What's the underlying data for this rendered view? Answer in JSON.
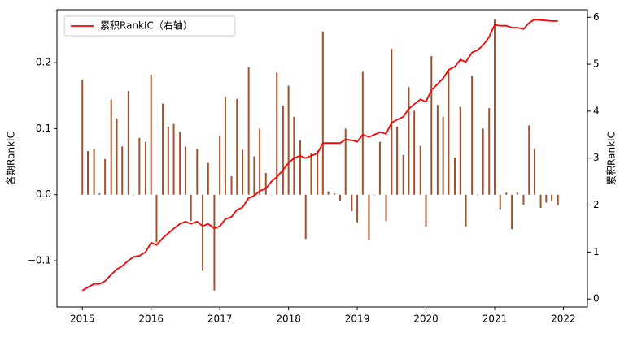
{
  "chart_data": {
    "type": "combo",
    "ylabel": "各期RankIC",
    "y2label": "累积RankIC",
    "x": [
      2015.0,
      2015.08,
      2015.17,
      2015.25,
      2015.33,
      2015.42,
      2015.5,
      2015.58,
      2015.67,
      2015.75,
      2015.83,
      2015.92,
      2016.0,
      2016.08,
      2016.17,
      2016.25,
      2016.33,
      2016.42,
      2016.5,
      2016.58,
      2016.67,
      2016.75,
      2016.83,
      2016.92,
      2017.0,
      2017.08,
      2017.17,
      2017.25,
      2017.33,
      2017.42,
      2017.5,
      2017.58,
      2017.67,
      2017.75,
      2017.83,
      2017.92,
      2018.0,
      2018.08,
      2018.17,
      2018.25,
      2018.33,
      2018.42,
      2018.5,
      2018.58,
      2018.67,
      2018.75,
      2018.83,
      2018.92,
      2019.0,
      2019.08,
      2019.17,
      2019.25,
      2019.33,
      2019.42,
      2019.5,
      2019.58,
      2019.67,
      2019.75,
      2019.83,
      2019.92,
      2020.0,
      2020.08,
      2020.17,
      2020.25,
      2020.33,
      2020.42,
      2020.5,
      2020.58,
      2020.67,
      2020.75,
      2020.83,
      2020.92,
      2021.0,
      2021.08,
      2021.17,
      2021.25,
      2021.33,
      2021.42,
      2021.5,
      2021.58,
      2021.67,
      2021.75,
      2021.83,
      2021.92
    ],
    "series": [
      {
        "type": "bar",
        "axis": "y",
        "color": "#a0522d",
        "values": [
          0.174,
          0.066,
          0.069,
          0.002,
          0.054,
          0.144,
          0.115,
          0.073,
          0.157,
          0.0,
          0.086,
          0.08,
          0.182,
          -0.072,
          0.138,
          0.103,
          0.107,
          0.095,
          0.073,
          -0.04,
          0.069,
          -0.115,
          0.048,
          -0.145,
          0.089,
          0.148,
          0.028,
          0.145,
          0.068,
          0.193,
          0.058,
          0.1,
          0.033,
          0.0,
          0.185,
          0.135,
          0.165,
          0.118,
          0.082,
          -0.067,
          0.063,
          0.067,
          0.247,
          0.005,
          0.002,
          -0.01,
          0.1,
          -0.025,
          -0.042,
          0.186,
          -0.068,
          0.0,
          0.08,
          -0.04,
          0.221,
          0.103,
          0.06,
          0.163,
          0.127,
          0.074,
          -0.048,
          0.21,
          0.136,
          0.118,
          0.19,
          0.056,
          0.133,
          -0.048,
          0.18,
          0.0,
          0.1,
          0.131,
          0.265,
          -0.022,
          0.003,
          -0.052,
          0.003,
          -0.015,
          0.105,
          0.07,
          -0.02,
          -0.012,
          -0.01,
          -0.016
        ]
      },
      {
        "type": "line",
        "axis": "y2",
        "name": "累积RankIC（右轴）",
        "color": "#ff0000",
        "values": [
          0.18,
          0.25,
          0.32,
          0.32,
          0.38,
          0.52,
          0.63,
          0.7,
          0.82,
          0.9,
          0.92,
          1.0,
          1.2,
          1.15,
          1.3,
          1.4,
          1.5,
          1.6,
          1.65,
          1.6,
          1.65,
          1.55,
          1.6,
          1.5,
          1.55,
          1.7,
          1.75,
          1.9,
          1.95,
          2.15,
          2.2,
          2.3,
          2.35,
          2.5,
          2.6,
          2.75,
          2.9,
          3.0,
          3.05,
          3.0,
          3.05,
          3.1,
          3.32,
          3.32,
          3.32,
          3.32,
          3.4,
          3.38,
          3.35,
          3.5,
          3.45,
          3.5,
          3.55,
          3.52,
          3.75,
          3.82,
          3.88,
          4.05,
          4.15,
          4.25,
          4.2,
          4.45,
          4.58,
          4.7,
          4.88,
          4.95,
          5.1,
          5.05,
          5.25,
          5.3,
          5.4,
          5.58,
          5.84,
          5.82,
          5.82,
          5.78,
          5.78,
          5.75,
          5.88,
          5.95,
          5.94,
          5.93,
          5.92,
          5.92
        ]
      }
    ],
    "xlim": [
      2014.63,
      2022.35
    ],
    "xticks": [
      2015,
      2016,
      2017,
      2018,
      2019,
      2020,
      2021,
      2022
    ],
    "ylim": [
      -0.17,
      0.28
    ],
    "yticks": [
      {
        "value": -0.1,
        "label": "−0.1"
      },
      {
        "value": 0,
        "label": "0.0"
      },
      0.1,
      0.2
    ],
    "y2lim": [
      -0.17,
      6.16
    ],
    "y2ticks": [
      0,
      1,
      2,
      3,
      4,
      5,
      6
    ],
    "legend": "upper left"
  }
}
